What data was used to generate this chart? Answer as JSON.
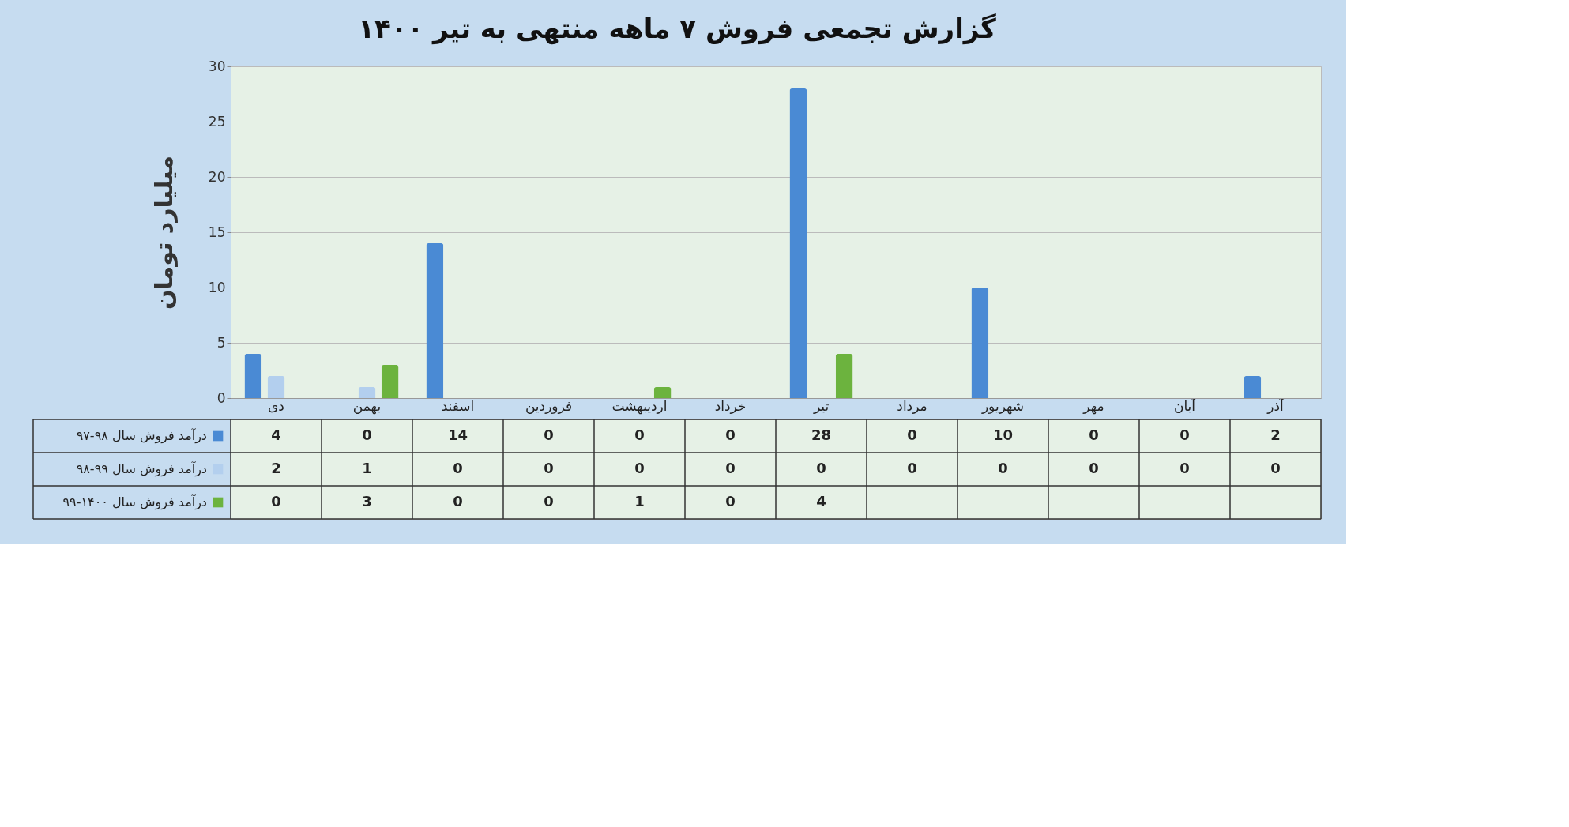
{
  "chart_data": {
    "type": "bar",
    "title": "گزارش تجمعی فروش ۷ ماهه منتهی به تیر ۱۴۰۰",
    "ylabel": "میلیارد تومان",
    "categories": [
      "دی",
      "بهمن",
      "اسفند",
      "فروردین",
      "اردیبهشت",
      "خرداد",
      "تیر",
      "مرداد",
      "شهریور",
      "مهر",
      "آبان",
      "آذر"
    ],
    "series": [
      {
        "name": "درآمد فروش سال ۹۸-۹۷",
        "color": "#4a8ad4",
        "values": [
          4,
          0,
          14,
          0,
          0,
          0,
          28,
          0,
          10,
          0,
          0,
          2
        ]
      },
      {
        "name": "درآمد فروش سال ۹۹-۹۸",
        "color": "#b3cfee",
        "values": [
          2,
          1,
          0,
          0,
          0,
          0,
          0,
          0,
          0,
          0,
          0,
          0
        ]
      },
      {
        "name": "درآمد فروش سال ۱۴۰۰-۹۹",
        "color": "#6cb33e",
        "values": [
          0,
          3,
          0,
          0,
          1,
          0,
          4,
          null,
          null,
          null,
          null,
          null
        ]
      }
    ],
    "ylim": [
      0,
      30
    ],
    "yticks": [
      0,
      5,
      10,
      15,
      20,
      25,
      30
    ],
    "grid": "y",
    "legend": "bottom",
    "data_labels": true
  }
}
